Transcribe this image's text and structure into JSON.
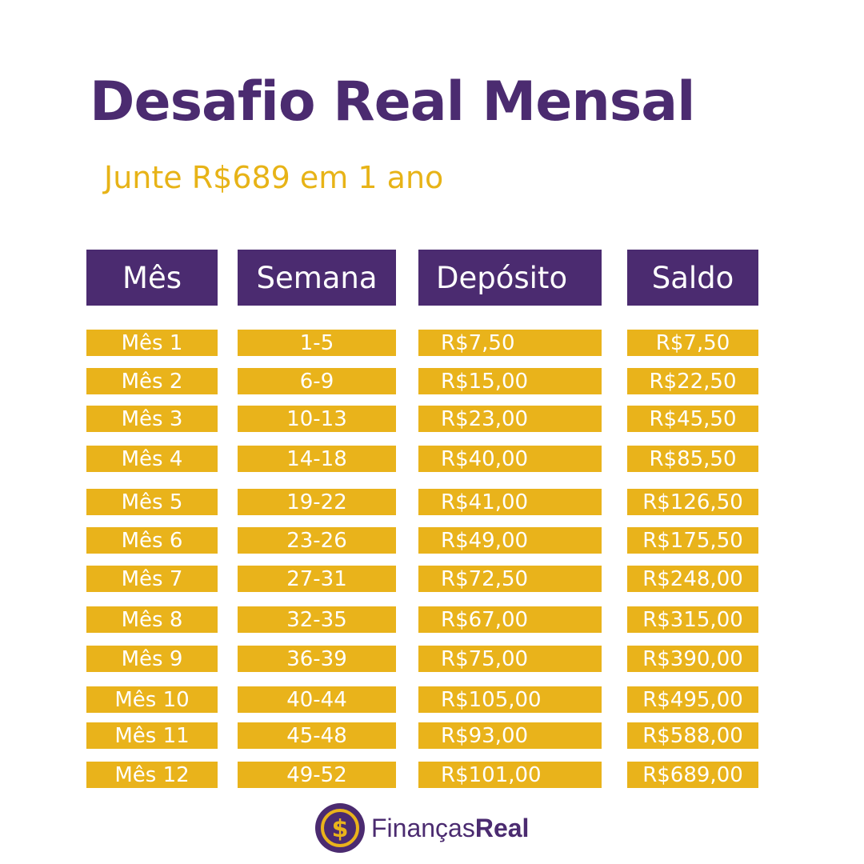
{
  "title": "Desafio Real Mensal",
  "subtitle": "Junte R$689 em 1 ano",
  "colors": {
    "purple": "#4b2b70",
    "gold": "#e9b31b",
    "white": "#ffffff"
  },
  "table": {
    "headers": [
      "Mês",
      "Semana",
      "Depósito",
      "Saldo"
    ],
    "rows": [
      [
        "Mês 1",
        "1-5",
        "R$7,50",
        "R$7,50"
      ],
      [
        "Mês 2",
        "6-9",
        "R$15,00",
        "R$22,50"
      ],
      [
        "Mês 3",
        "10-13",
        "R$23,00",
        "R$45,50"
      ],
      [
        "Mês 4",
        "14-18",
        "R$40,00",
        "R$85,50"
      ],
      [
        "Mês 5",
        "19-22",
        "R$41,00",
        "R$126,50"
      ],
      [
        "Mês 6",
        "23-26",
        "R$49,00",
        "R$175,50"
      ],
      [
        "Mês 7",
        "27-31",
        "R$72,50",
        "R$248,00"
      ],
      [
        "Mês 8",
        "32-35",
        "R$67,00",
        "R$315,00"
      ],
      [
        "Mês 9",
        "36-39",
        "R$75,00",
        "R$390,00"
      ],
      [
        "Mês 10",
        "40-44",
        "R$105,00",
        "R$495,00"
      ],
      [
        "Mês 11",
        "45-48",
        "R$93,00",
        "R$588,00"
      ],
      [
        "Mês 12",
        "49-52",
        "R$101,00",
        "R$689,00"
      ]
    ]
  },
  "logo": {
    "icon": "dollar-coin-icon",
    "symbol": "$",
    "brand_light": "Finanças",
    "brand_bold": "Real"
  }
}
